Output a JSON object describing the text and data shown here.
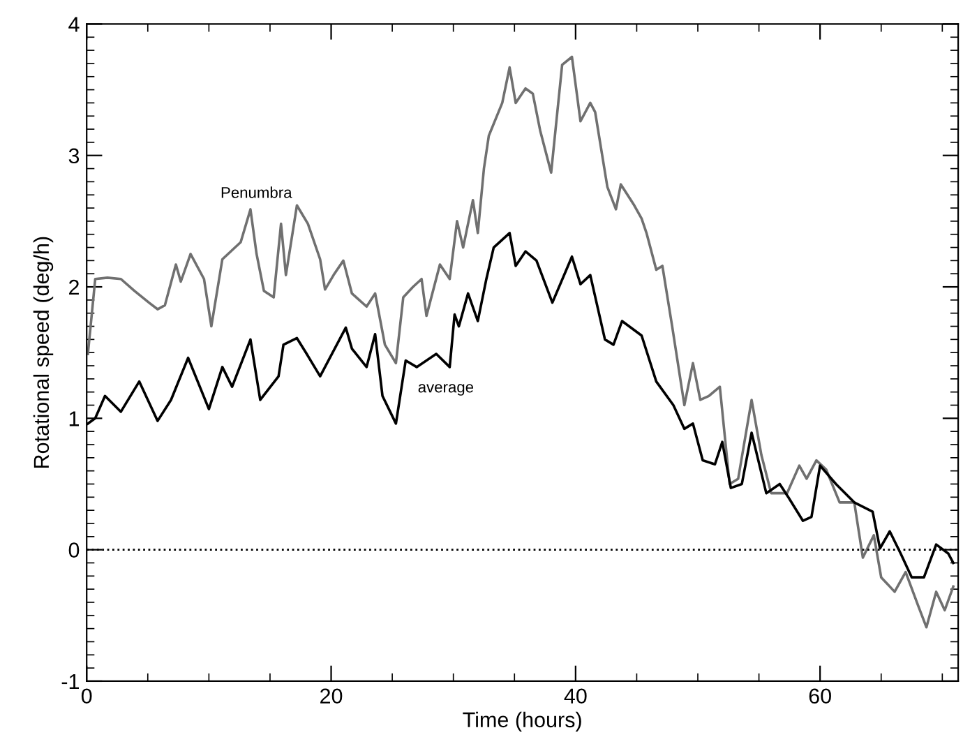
{
  "chart_data": {
    "type": "line",
    "xlabel": "Time (hours)",
    "ylabel": "Rotational speed (deg/h)",
    "xlim": [
      0,
      71.3
    ],
    "ylim": [
      -1,
      4
    ],
    "xticks": [
      0,
      20,
      40,
      60
    ],
    "yticks": [
      -1,
      0,
      1,
      2,
      3,
      4
    ],
    "grid": false,
    "legend": false,
    "ref_lines": [
      {
        "axis": "y",
        "value": 0,
        "color": "#000000",
        "line_style": "dotted"
      }
    ],
    "series": [
      {
        "name": "Penumbra",
        "color": "#707070",
        "x": [
          0.1,
          0.7,
          1.7,
          2.8,
          3.9,
          5.1,
          5.8,
          6.4,
          7.3,
          7.7,
          8.5,
          9.6,
          10.2,
          11.1,
          12.6,
          13.4,
          13.9,
          14.5,
          15.3,
          15.9,
          16.3,
          17.2,
          18.1,
          19.1,
          19.5,
          20.2,
          21.0,
          21.7,
          22.9,
          23.6,
          24.4,
          25.3,
          25.9,
          26.7,
          27.4,
          27.8,
          28.9,
          29.7,
          30.3,
          30.8,
          31.6,
          32.0,
          32.5,
          32.9,
          34.0,
          34.6,
          35.1,
          35.9,
          36.5,
          37.1,
          38.0,
          38.9,
          39.7,
          40.4,
          41.2,
          41.6,
          42.6,
          43.3,
          43.7,
          44.8,
          45.4,
          45.8,
          46.6,
          47.1,
          47.9,
          48.9,
          49.6,
          50.2,
          50.9,
          51.8,
          52.6,
          53.3,
          54.4,
          55.2,
          56.0,
          57.3,
          58.3,
          58.9,
          59.7,
          60.5,
          61.6,
          62.8,
          63.5,
          64.4,
          65.0,
          66.1,
          67.0,
          68.0,
          68.7,
          69.5,
          70.2,
          70.9
        ],
        "values": [
          1.49,
          2.06,
          2.07,
          2.06,
          1.97,
          1.88,
          1.83,
          1.86,
          2.17,
          2.04,
          2.25,
          2.06,
          1.7,
          2.21,
          2.34,
          2.59,
          2.25,
          1.97,
          1.92,
          2.48,
          2.09,
          2.62,
          2.48,
          2.21,
          1.98,
          2.09,
          2.2,
          1.95,
          1.85,
          1.95,
          1.56,
          1.42,
          1.92,
          2.0,
          2.06,
          1.78,
          2.17,
          2.06,
          2.5,
          2.3,
          2.66,
          2.41,
          2.9,
          3.15,
          3.4,
          3.67,
          3.4,
          3.51,
          3.47,
          3.19,
          2.87,
          3.69,
          3.75,
          3.26,
          3.4,
          3.33,
          2.76,
          2.59,
          2.78,
          2.62,
          2.52,
          2.41,
          2.13,
          2.16,
          1.7,
          1.1,
          1.42,
          1.14,
          1.17,
          1.24,
          0.5,
          0.54,
          1.14,
          0.72,
          0.43,
          0.43,
          0.64,
          0.54,
          0.68,
          0.61,
          0.36,
          0.36,
          -0.06,
          0.11,
          -0.21,
          -0.32,
          -0.17,
          -0.42,
          -0.59,
          -0.32,
          -0.46,
          -0.28
        ]
      },
      {
        "name": "average",
        "color": "#000000",
        "x": [
          0.1,
          0.7,
          1.5,
          2.8,
          4.3,
          5.8,
          6.9,
          8.3,
          10.0,
          11.1,
          11.9,
          13.4,
          14.2,
          15.7,
          16.1,
          17.2,
          18.0,
          19.1,
          21.2,
          21.7,
          22.9,
          23.6,
          24.2,
          25.3,
          26.1,
          27.0,
          28.6,
          29.7,
          30.1,
          30.45,
          31.2,
          32.0,
          32.7,
          33.3,
          34.6,
          35.1,
          35.9,
          36.8,
          38.1,
          39.7,
          40.4,
          41.2,
          42.4,
          43.1,
          43.8,
          45.4,
          46.6,
          48.0,
          48.9,
          49.6,
          50.4,
          51.4,
          52.0,
          52.7,
          53.6,
          54.4,
          55.6,
          56.7,
          57.4,
          58.6,
          59.3,
          60.0,
          61.3,
          62.8,
          64.3,
          64.9,
          65.7,
          66.6,
          67.5,
          68.5,
          69.5,
          70.5,
          70.9
        ],
        "values": [
          0.96,
          1.0,
          1.17,
          1.05,
          1.28,
          0.98,
          1.14,
          1.46,
          1.07,
          1.39,
          1.24,
          1.6,
          1.14,
          1.32,
          1.56,
          1.61,
          1.49,
          1.32,
          1.69,
          1.53,
          1.39,
          1.64,
          1.17,
          0.96,
          1.44,
          1.39,
          1.49,
          1.39,
          1.79,
          1.7,
          1.95,
          1.74,
          2.06,
          2.3,
          2.41,
          2.16,
          2.27,
          2.2,
          1.88,
          2.23,
          2.02,
          2.09,
          1.6,
          1.56,
          1.74,
          1.63,
          1.28,
          1.1,
          0.92,
          0.96,
          0.68,
          0.65,
          0.82,
          0.47,
          0.5,
          0.89,
          0.43,
          0.5,
          0.4,
          0.22,
          0.25,
          0.64,
          0.5,
          0.36,
          0.29,
          0.01,
          0.14,
          -0.03,
          -0.21,
          -0.21,
          0.04,
          -0.03,
          -0.1
        ]
      }
    ]
  }
}
